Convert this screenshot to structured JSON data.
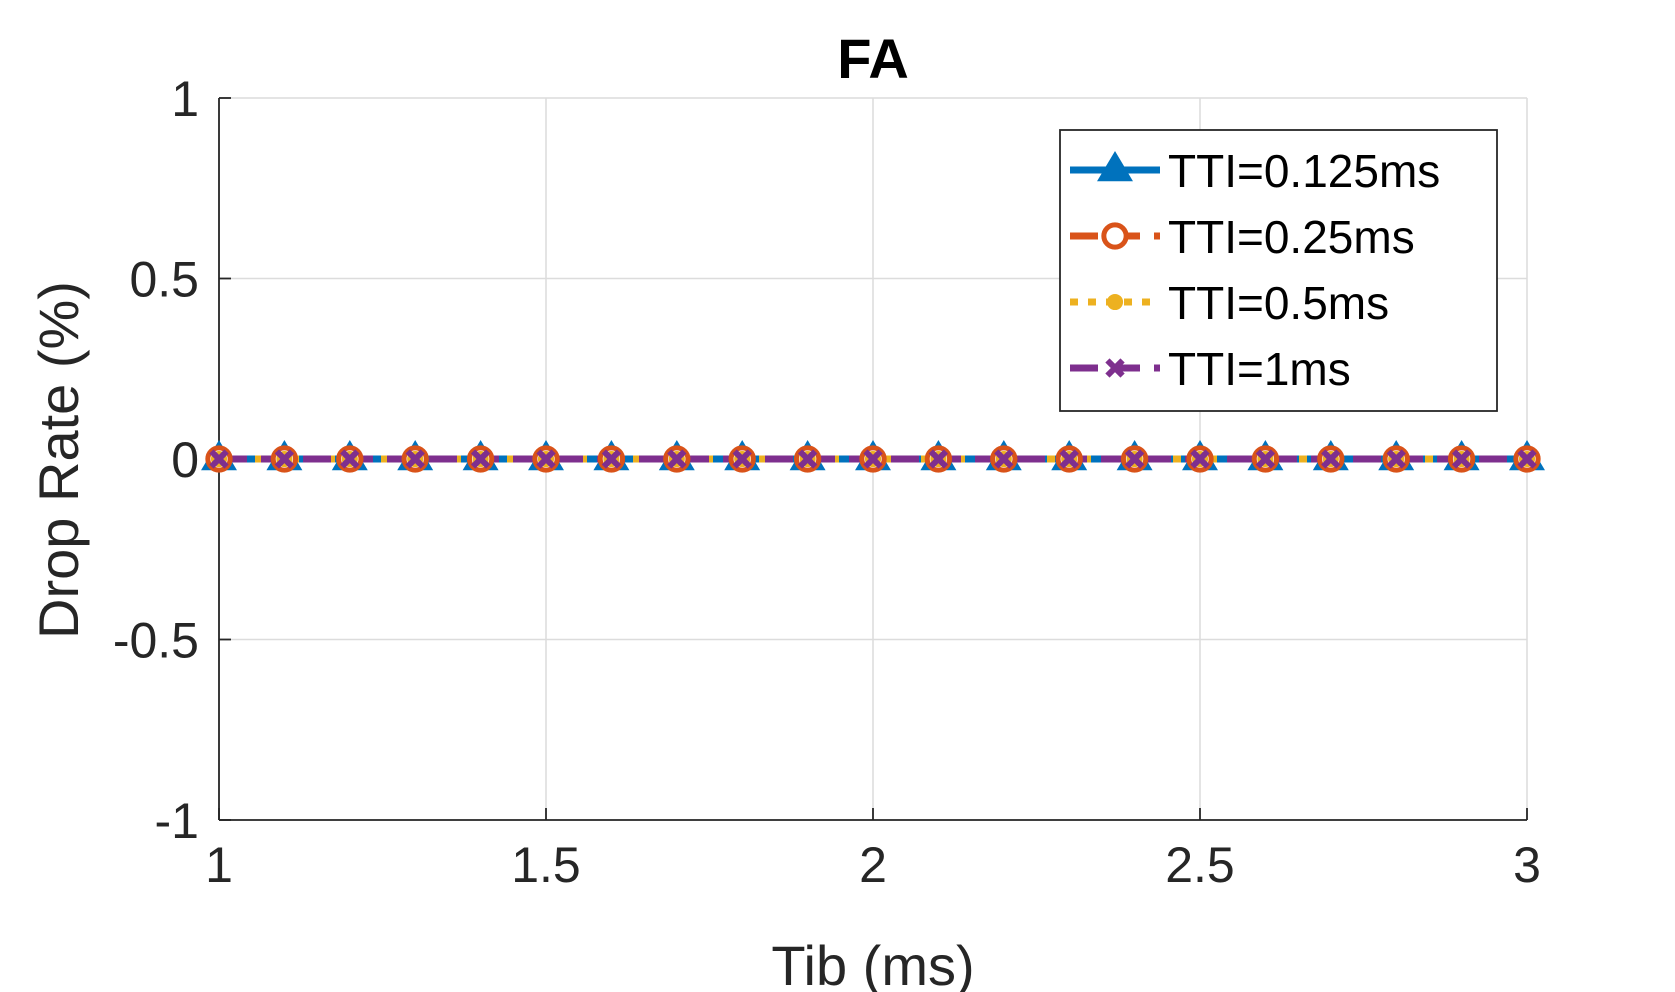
{
  "chart_data": {
    "type": "line",
    "title": "FA",
    "xlabel": "Tib (ms)",
    "ylabel": "Drop Rate (%)",
    "xlim": [
      1,
      3
    ],
    "ylim": [
      -1,
      1
    ],
    "xticks": [
      1,
      1.5,
      2,
      2.5,
      3
    ],
    "yticks": [
      -1,
      -0.5,
      0,
      0.5,
      1
    ],
    "xtick_labels": [
      "1",
      "1.5",
      "2",
      "2.5",
      "3"
    ],
    "ytick_labels": [
      "-1",
      "-0.5",
      "0",
      "0.5",
      "1"
    ],
    "grid": true,
    "legend_position": "top-right",
    "x": [
      1.0,
      1.1,
      1.2,
      1.3,
      1.4,
      1.5,
      1.6,
      1.7,
      1.8,
      1.9,
      2.0,
      2.1,
      2.2,
      2.3,
      2.4,
      2.5,
      2.6,
      2.7,
      2.8,
      2.9,
      3.0
    ],
    "series": [
      {
        "name": "TTI=0.125ms",
        "color": "#0072BD",
        "line_style": "solid",
        "marker": "triangle",
        "values": [
          0,
          0,
          0,
          0,
          0,
          0,
          0,
          0,
          0,
          0,
          0,
          0,
          0,
          0,
          0,
          0,
          0,
          0,
          0,
          0,
          0
        ]
      },
      {
        "name": "TTI=0.25ms",
        "color": "#D95319",
        "line_style": "dashed",
        "marker": "circle",
        "values": [
          0,
          0,
          0,
          0,
          0,
          0,
          0,
          0,
          0,
          0,
          0,
          0,
          0,
          0,
          0,
          0,
          0,
          0,
          0,
          0,
          0
        ]
      },
      {
        "name": "TTI=0.5ms",
        "color": "#EDB120",
        "line_style": "dotted",
        "marker": "dot",
        "values": [
          0,
          0,
          0,
          0,
          0,
          0,
          0,
          0,
          0,
          0,
          0,
          0,
          0,
          0,
          0,
          0,
          0,
          0,
          0,
          0,
          0
        ]
      },
      {
        "name": "TTI=1ms",
        "color": "#7E2F8E",
        "line_style": "dashed",
        "marker": "x",
        "values": [
          0,
          0,
          0,
          0,
          0,
          0,
          0,
          0,
          0,
          0,
          0,
          0,
          0,
          0,
          0,
          0,
          0,
          0,
          0,
          0,
          0
        ]
      }
    ]
  }
}
